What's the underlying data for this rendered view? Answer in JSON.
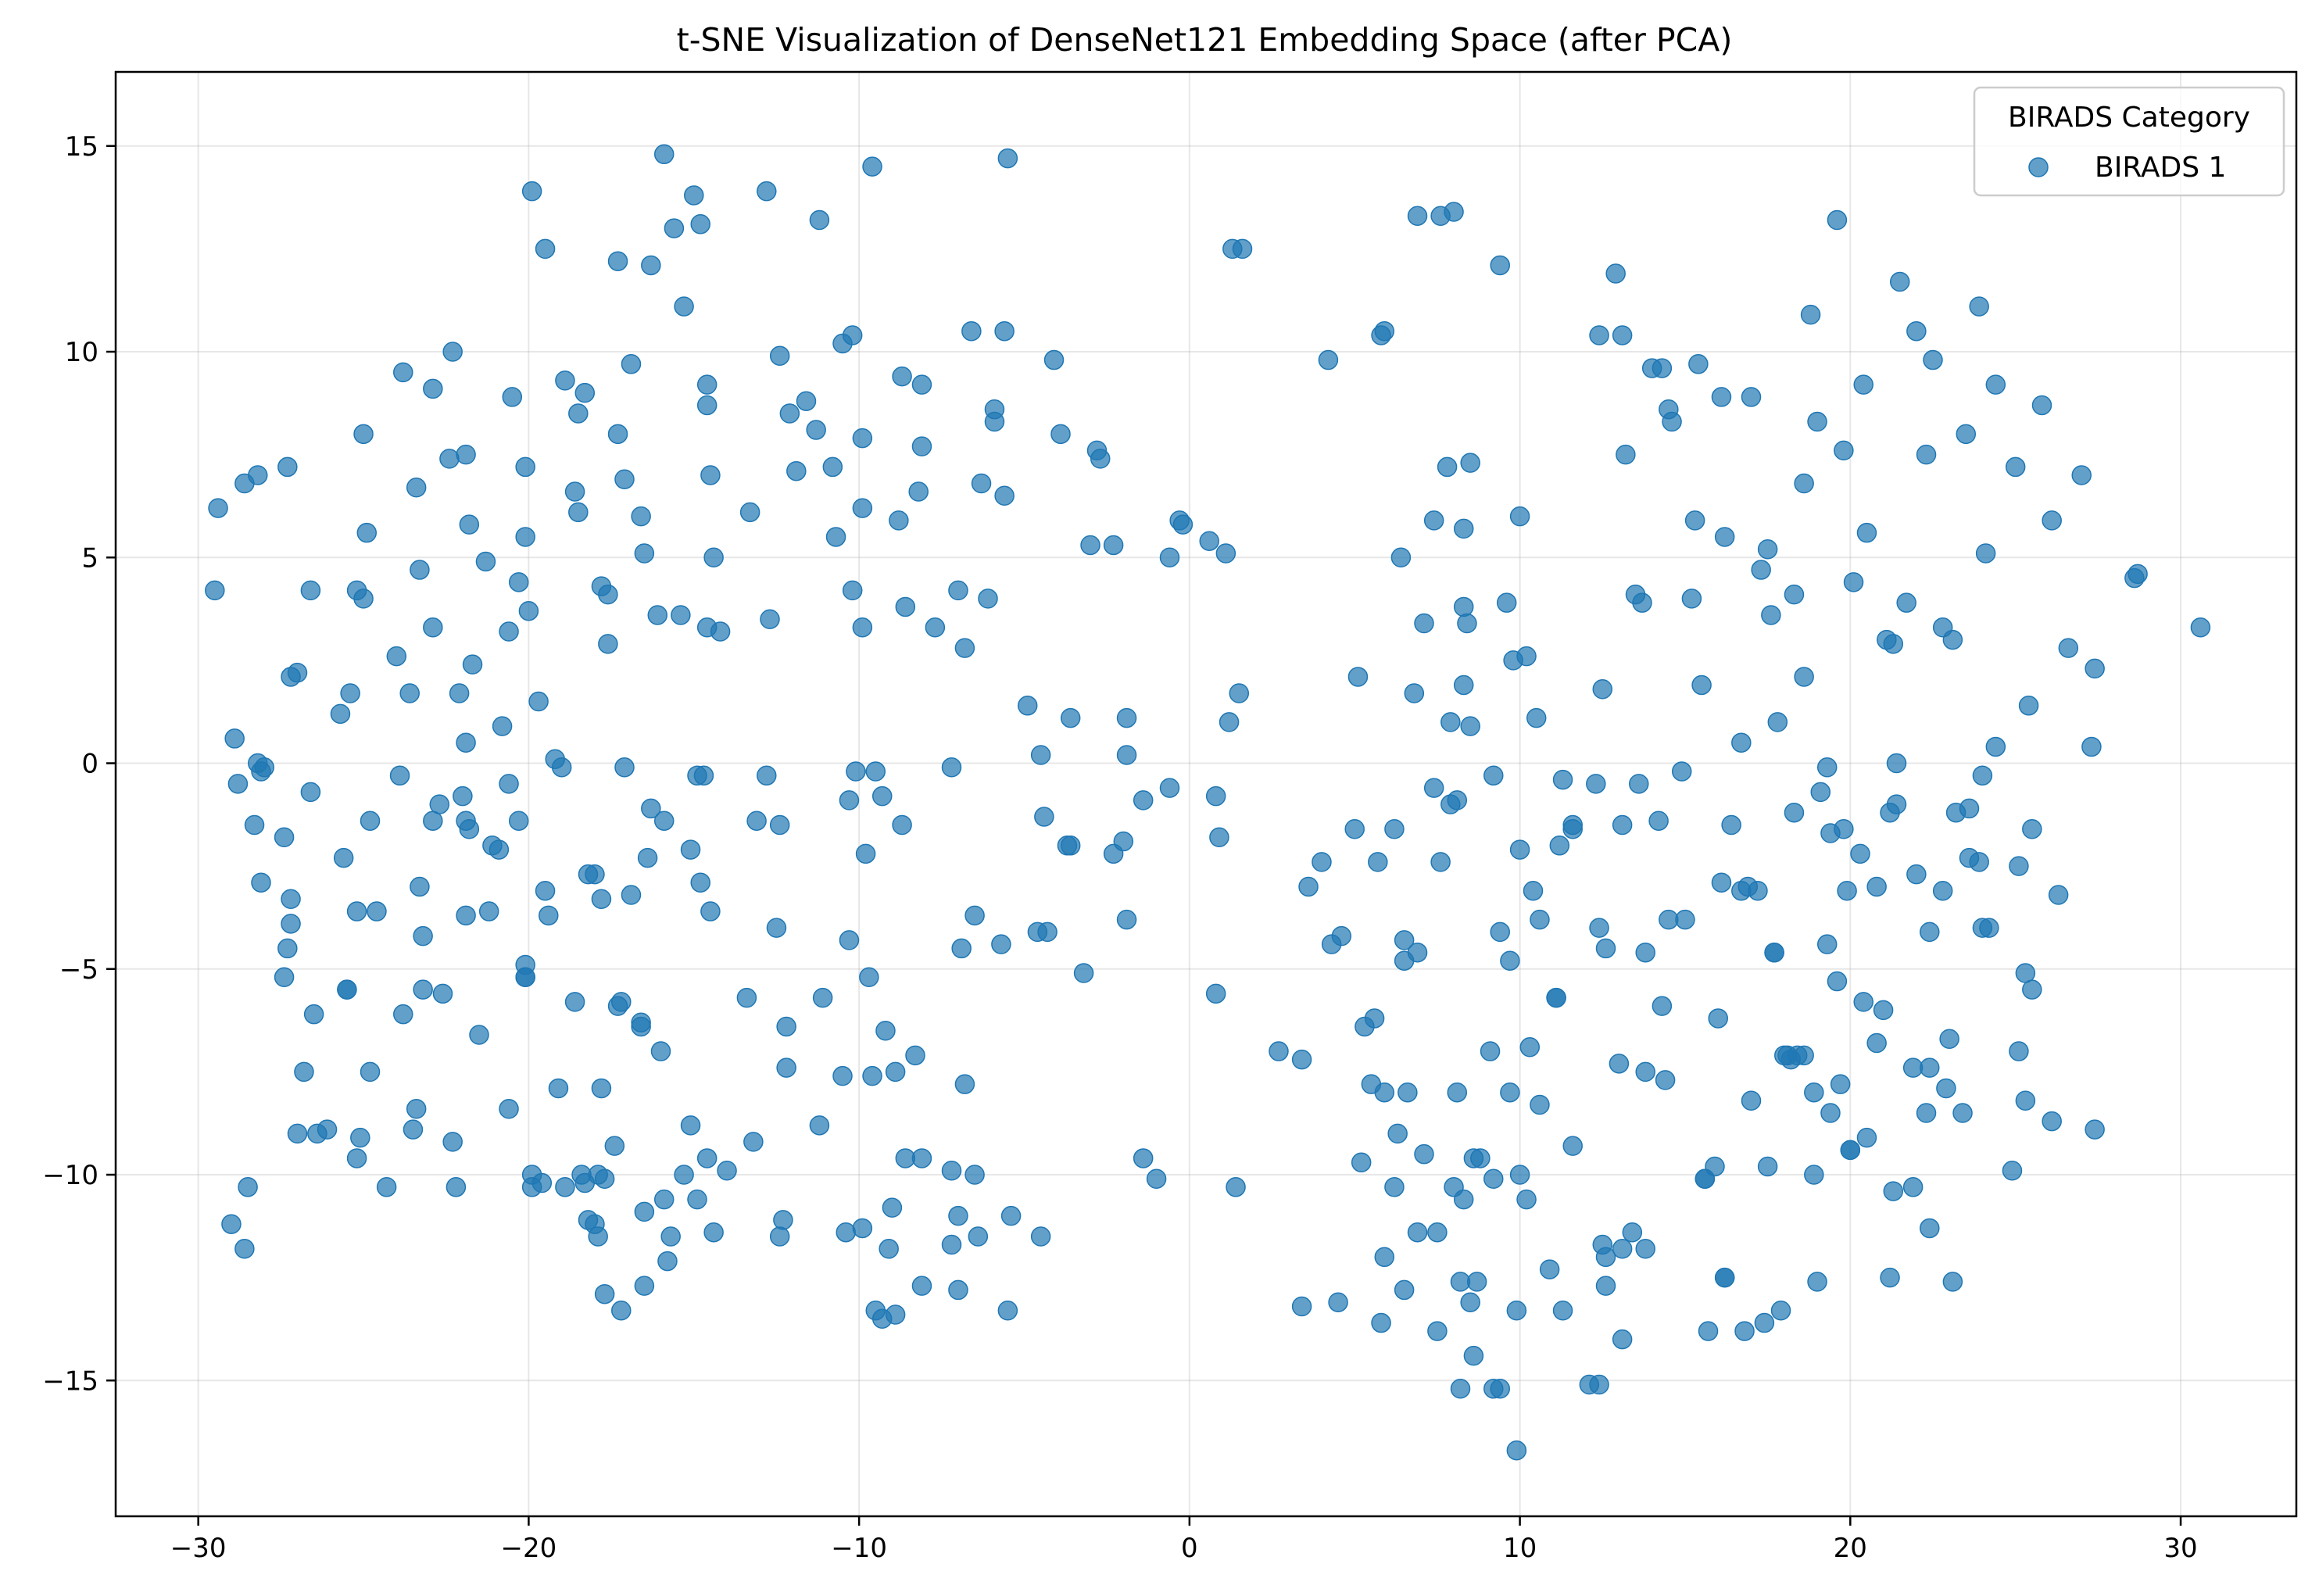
{
  "chart_data": {
    "type": "scatter",
    "title": "t-SNE Visualization of DenseNet121 Embedding Space (after PCA)",
    "xlabel": "",
    "ylabel": "",
    "xlim": [
      -32.5,
      33.5
    ],
    "ylim": [
      -18.3,
      16.8
    ],
    "xticks": [
      -30,
      -20,
      -10,
      0,
      10,
      20,
      30
    ],
    "yticks": [
      -15,
      -10,
      -5,
      0,
      5,
      10,
      15
    ],
    "xtick_labels": [
      "−30",
      "−20",
      "−10",
      "0",
      "10",
      "20",
      "30"
    ],
    "ytick_labels": [
      "−15",
      "−10",
      "−5",
      "0",
      "5",
      "10",
      "15"
    ],
    "grid": true,
    "legend": {
      "title": "BIRADS Category",
      "placement": "top-right"
    },
    "color": "#1f77b4",
    "series": [
      {
        "name": "BIRADS 1",
        "x": [
          -29.5,
          -29.4,
          -28.6,
          -28.2,
          -27.3,
          -28.2,
          -28.0,
          -27.2,
          -27.0,
          -26.6,
          -26.6,
          -25.0,
          -24.9,
          -25.2,
          -25.0,
          -25.7,
          -25.4,
          -23.8,
          -24.0,
          -23.4,
          -23.3,
          -22.9,
          -22.9,
          -22.4,
          -22.3,
          -21.9,
          -21.8,
          -21.7,
          -21.9,
          -22.1,
          -20.5,
          -20.6,
          -20.3,
          -20.1,
          -20.1,
          -20.0,
          -19.9,
          -19.5,
          -19.7,
          -19.2,
          -18.9,
          -18.5,
          -18.3,
          -18.5,
          -18.6,
          -17.8,
          -17.3,
          -17.6,
          -17.6,
          -17.3,
          -17.1,
          -17.1,
          -16.9,
          -16.6,
          -16.5,
          -16.3,
          -16.1,
          -15.9,
          -15.6,
          -15.4,
          -15.3,
          -15.0,
          -14.9,
          -14.8,
          -14.6,
          -14.6,
          -14.5,
          -14.4,
          -14.2,
          -14.7,
          -14.6,
          -13.3,
          -12.8,
          -12.7,
          -12.4,
          -12.1,
          -11.6,
          -11.9,
          -11.3,
          -11.2,
          -10.8,
          -10.7,
          -10.5,
          -10.2,
          -10.2,
          -9.9,
          -9.9,
          -9.9,
          -9.6,
          -9.5,
          -8.8,
          -8.7,
          -8.6,
          -8.1,
          -8.1,
          -8.2,
          -7.7,
          -7.2,
          -7.0,
          -6.8,
          -6.6,
          -6.3,
          -6.1,
          -5.9,
          -5.9,
          -5.6,
          -5.6,
          -5.5,
          -4.9,
          -4.5,
          -4.1,
          -3.9,
          -3.6,
          -3.0,
          -2.8,
          -2.7,
          -2.3,
          -1.9,
          -0.6,
          -0.3,
          0.6,
          1.1,
          1.3,
          1.6,
          1.2,
          -27.2,
          -27.0,
          -25.1,
          -24.3,
          -23.3,
          -23.2,
          -22.9,
          -22.0,
          -21.8,
          -21.3,
          -20.6,
          -20.1,
          -20.3,
          -19.9,
          -19.5,
          -18.6,
          -18.0,
          -17.8,
          -17.3,
          -16.9,
          -16.6,
          -15.9,
          -15.1,
          -14.5,
          -12.8,
          -12.2,
          -10.3,
          -10.1,
          -9.8,
          -8.9,
          -8.7,
          -7.2,
          -6.8,
          -4.4,
          -3.7,
          -2.3,
          -1.9,
          -1.0,
          -0.6,
          0.8,
          1.5,
          -28.3,
          -28.1,
          -27.3,
          -26.4,
          -25.5,
          -24.6,
          -23.6,
          -22.7,
          -21.5,
          -20.8,
          -20.1,
          -19.1,
          -18.3,
          -17.4,
          -16.5,
          -15.7,
          -14.8,
          -13.4,
          -12.5,
          -11.2,
          -10.5,
          -9.7,
          -8.1,
          -6.9,
          -6.5,
          -5.4,
          -4.6,
          -2.0,
          -1.4,
          0.9,
          1.4,
          -29.0,
          -28.9,
          -27.2,
          -27.4,
          -26.8,
          -26.1,
          -25.5,
          -25.2,
          -23.8,
          -23.4,
          -23.2,
          -22.6,
          -21.9,
          -21.9,
          -21.2,
          -20.1,
          -19.4,
          -18.4,
          -17.8,
          -17.2,
          -16.6,
          -16.0,
          -15.3,
          -14.9,
          -14.4,
          -13.2,
          -12.4,
          -12.2,
          -11.1,
          -9.6,
          -9.2,
          -8.6,
          -8.3,
          -7.2,
          -7.0,
          -6.4,
          -5.5,
          -4.5,
          -4.3,
          -28.6,
          -28.1,
          -27.4,
          -25.2,
          -24.8,
          -23.5,
          -22.3,
          -22.2,
          -20.6,
          -19.9,
          -19.6,
          -18.9,
          -18.2,
          -17.9,
          -17.7,
          -17.2,
          -16.5,
          -15.9,
          -15.8,
          -15.1,
          -14.6,
          -14.0,
          -12.3,
          -10.4,
          -9.9,
          -9.5,
          -9.3,
          -9.0,
          -9.1,
          -8.9,
          -8.1,
          -7.0,
          -18.2,
          -17.9,
          -18.0,
          -17.7,
          -28.5,
          0.8,
          -1.9,
          -1.4,
          -25.6,
          -28.8,
          -23.9,
          -19.0,
          -16.3,
          -12.4,
          -24.8,
          -26.5,
          -20.9,
          -21.1,
          -16.4,
          -13.1,
          -10.3,
          -9.3,
          -6.5,
          -5.7,
          -3.2,
          -3.6,
          -0.2,
          4.2,
          5.1,
          5.8,
          5.9,
          6.4,
          6.9,
          6.8,
          7.1,
          7.4,
          7.6,
          7.8,
          7.9,
          8.0,
          8.1,
          8.3,
          8.3,
          8.4,
          8.5,
          9.4,
          9.6,
          9.8,
          10.0,
          10.2,
          10.5,
          11.3,
          11.6,
          12.4,
          12.5,
          12.9,
          13.1,
          13.2,
          13.5,
          13.7,
          14.0,
          14.3,
          14.5,
          14.6,
          15.2,
          15.3,
          15.4,
          16.1,
          16.2,
          16.7,
          17.0,
          17.3,
          17.5,
          17.6,
          17.8,
          18.3,
          18.6,
          18.8,
          19.0,
          19.3,
          19.6,
          19.8,
          20.1,
          20.4,
          20.5,
          21.1,
          21.3,
          21.5,
          21.7,
          22.0,
          22.3,
          22.5,
          22.8,
          23.1,
          23.5,
          23.9,
          24.1,
          24.4,
          25.0,
          25.4,
          25.8,
          26.1,
          26.6,
          27.0,
          27.4,
          28.6,
          28.7,
          30.6,
          5.0,
          5.7,
          6.5,
          6.9,
          7.6,
          7.9,
          8.3,
          8.5,
          9.2,
          9.4,
          10.0,
          10.4,
          10.6,
          11.2,
          11.6,
          12.3,
          12.6,
          13.1,
          13.6,
          14.2,
          14.5,
          15.0,
          15.5,
          16.1,
          16.7,
          17.2,
          17.7,
          18.3,
          18.6,
          19.1,
          19.4,
          19.9,
          20.3,
          20.8,
          21.2,
          21.4,
          22.0,
          22.4,
          22.8,
          23.2,
          23.6,
          24.0,
          24.4,
          25.1,
          25.5,
          26.3,
          27.3,
          4.3,
          5.5,
          6.2,
          6.5,
          7.4,
          8.1,
          8.8,
          9.1,
          9.7,
          10.3,
          10.6,
          11.1,
          11.6,
          12.4,
          12.5,
          13.0,
          13.4,
          13.8,
          14.3,
          14.9,
          15.6,
          16.0,
          16.4,
          16.9,
          17.7,
          18.2,
          18.6,
          19.3,
          19.7,
          20.4,
          20.8,
          21.4,
          21.9,
          22.4,
          23.0,
          23.4,
          23.9,
          24.2,
          25.1,
          25.3,
          25.5,
          2.7,
          3.4,
          5.2,
          5.9,
          6.3,
          6.6,
          7.1,
          7.5,
          8.0,
          8.3,
          8.6,
          9.2,
          9.7,
          10.0,
          10.2,
          11.1,
          12.6,
          13.1,
          13.8,
          14.4,
          15.6,
          16.2,
          17.0,
          17.5,
          18.1,
          18.4,
          18.9,
          19.4,
          20.0,
          20.5,
          21.3,
          21.9,
          22.3,
          22.9,
          23.6,
          24.0,
          3.4,
          4.5,
          5.8,
          6.5,
          7.5,
          8.2,
          8.5,
          9.2,
          9.9,
          10.9,
          11.3,
          12.4,
          13.1,
          16.2,
          16.8,
          17.4,
          17.9,
          19.0,
          8.6,
          8.2,
          9.4,
          12.1,
          9.9,
          4.6,
          5.6,
          6.2,
          5.9,
          4.0,
          3.6,
          5.3,
          6.9,
          8.7,
          12.6,
          13.8,
          15.7,
          15.9,
          20.0,
          21.2,
          22.4,
          23.1,
          24.9,
          25.3,
          26.1,
          27.4,
          19.8,
          18.0,
          19.6,
          21.0,
          18.9
        ],
        "y": [
          4.2,
          6.2,
          6.8,
          7.0,
          7.2,
          0.0,
          -0.1,
          2.1,
          2.2,
          4.2,
          -0.7,
          8.0,
          5.6,
          4.2,
          4.0,
          1.2,
          1.7,
          9.5,
          2.6,
          6.7,
          4.7,
          9.1,
          3.3,
          7.4,
          10.0,
          7.5,
          5.8,
          2.4,
          0.5,
          1.7,
          8.9,
          3.2,
          4.4,
          7.2,
          5.5,
          3.7,
          13.9,
          12.5,
          1.5,
          0.1,
          9.3,
          8.5,
          9.0,
          6.1,
          6.6,
          4.3,
          8.0,
          2.9,
          4.1,
          12.2,
          6.9,
          -0.1,
          9.7,
          6.0,
          5.1,
          12.1,
          3.6,
          14.8,
          13.0,
          3.6,
          11.1,
          13.8,
          -0.3,
          13.1,
          8.7,
          9.2,
          7.0,
          5.0,
          3.2,
          -0.3,
          3.3,
          6.1,
          13.9,
          3.5,
          9.9,
          8.5,
          8.8,
          7.1,
          8.1,
          13.2,
          7.2,
          5.5,
          10.2,
          10.4,
          4.2,
          7.9,
          6.2,
          3.3,
          14.5,
          -0.2,
          5.9,
          9.4,
          3.8,
          9.2,
          7.7,
          6.6,
          3.3,
          -0.1,
          4.2,
          2.8,
          10.5,
          6.8,
          4.0,
          8.6,
          8.3,
          6.5,
          10.5,
          14.7,
          1.4,
          0.2,
          9.8,
          8.0,
          1.1,
          5.3,
          7.6,
          7.4,
          5.3,
          0.2,
          5.0,
          5.9,
          5.4,
          5.1,
          12.5,
          12.5,
          1.0,
          -3.3,
          -9.0,
          -9.1,
          -10.3,
          -3.0,
          -5.5,
          -1.4,
          -0.8,
          -1.6,
          4.9,
          -0.5,
          -4.9,
          -1.4,
          -10.3,
          -3.1,
          -5.8,
          -2.7,
          -3.3,
          -5.9,
          -3.2,
          -6.4,
          -1.4,
          -2.1,
          -3.6,
          -0.3,
          -7.4,
          -0.9,
          -0.2,
          -2.2,
          -7.5,
          -1.5,
          -11.7,
          -7.8,
          -1.3,
          -2.0,
          -2.2,
          1.1,
          -10.1,
          -0.6,
          -0.8,
          1.7,
          -1.5,
          -0.2,
          -4.5,
          -9.0,
          -5.5,
          -3.6,
          1.7,
          -1.0,
          -6.6,
          0.9,
          -5.2,
          -7.9,
          -10.2,
          -9.3,
          -10.9,
          -11.5,
          -2.9,
          -5.7,
          -4.0,
          -8.8,
          -7.6,
          -5.2,
          -9.6,
          -4.5,
          -10.0,
          -11.0,
          -4.1,
          -1.9,
          -9.6,
          -1.8,
          -10.3,
          -11.2,
          0.6,
          -3.9,
          -5.2,
          -7.5,
          -8.9,
          -5.5,
          -3.6,
          -6.1,
          -8.4,
          -4.2,
          -5.6,
          -3.7,
          -1.4,
          -3.6,
          -5.2,
          -3.7,
          -10.0,
          -7.9,
          -5.8,
          -6.3,
          -7.0,
          -10.0,
          -10.6,
          -11.4,
          -9.2,
          -11.5,
          -6.4,
          -5.7,
          -7.6,
          -6.5,
          -9.6,
          -7.1,
          -9.9,
          -11.0,
          -11.5,
          -13.3,
          -11.5,
          -4.1,
          -11.8,
          -2.9,
          -1.8,
          -9.6,
          -7.5,
          -8.9,
          -9.2,
          -10.3,
          -8.4,
          -10.0,
          -10.2,
          -10.3,
          -11.1,
          -11.5,
          -12.9,
          -13.3,
          -12.7,
          -10.6,
          -12.1,
          -8.8,
          -9.6,
          -9.9,
          -11.1,
          -11.4,
          -11.3,
          -13.3,
          -13.5,
          -10.8,
          -11.8,
          -13.4,
          -12.7,
          -12.8,
          -2.7,
          -10.0,
          -11.2,
          -10.1,
          -10.3,
          -5.6,
          -3.8,
          -0.9,
          -2.3,
          -0.5,
          -0.3,
          -0.1,
          -1.1,
          -1.5,
          -1.4,
          -6.1,
          -2.1,
          -2.0,
          -2.3,
          -1.4,
          -4.3,
          -0.8,
          -3.7,
          -4.4,
          -5.1,
          -2.0,
          5.8,
          9.8,
          2.1,
          10.4,
          10.5,
          5.0,
          13.3,
          1.7,
          3.4,
          5.9,
          13.3,
          7.2,
          1.0,
          13.4,
          -0.9,
          5.7,
          3.8,
          3.4,
          7.3,
          12.1,
          3.9,
          2.5,
          6.0,
          2.6,
          1.1,
          -0.4,
          -1.6,
          10.4,
          1.8,
          11.9,
          10.4,
          7.5,
          4.1,
          3.9,
          9.6,
          9.6,
          8.6,
          8.3,
          4.0,
          5.9,
          9.7,
          8.9,
          5.5,
          0.5,
          8.9,
          4.7,
          5.2,
          3.6,
          1.0,
          4.1,
          6.8,
          10.9,
          8.3,
          -0.1,
          13.2,
          7.6,
          4.4,
          9.2,
          5.6,
          3.0,
          2.9,
          11.7,
          3.9,
          10.5,
          7.5,
          9.8,
          3.3,
          3.0,
          8.0,
          11.1,
          5.1,
          9.2,
          7.2,
          1.4,
          8.7,
          5.9,
          2.8,
          7.0,
          2.3,
          4.5,
          4.6,
          3.3,
          -1.6,
          -2.4,
          -4.3,
          -4.6,
          -2.4,
          -1.0,
          1.9,
          0.9,
          -0.3,
          -4.1,
          -2.1,
          -3.1,
          -3.8,
          -2.0,
          -1.5,
          -0.5,
          -4.5,
          -1.5,
          -0.5,
          -1.4,
          -3.8,
          -3.8,
          1.9,
          -2.9,
          -3.1,
          -3.1,
          -4.6,
          -1.2,
          2.1,
          -0.7,
          -1.7,
          -3.1,
          -2.2,
          -3.0,
          -1.2,
          0.0,
          -2.7,
          -4.1,
          -3.1,
          -1.2,
          -2.3,
          -0.3,
          0.4,
          -2.5,
          -1.6,
          -3.2,
          0.4,
          -4.4,
          -7.8,
          -1.6,
          -4.8,
          -0.6,
          -8.0,
          -9.6,
          -7.0,
          -4.8,
          -6.9,
          -8.3,
          -5.7,
          -9.3,
          -4.0,
          -11.7,
          -7.3,
          -11.4,
          -4.6,
          -5.9,
          -0.2,
          -10.1,
          -6.2,
          -1.5,
          -3.0,
          -4.6,
          -7.2,
          -7.1,
          -4.4,
          -7.8,
          -5.8,
          -6.8,
          -1.0,
          -10.3,
          -7.4,
          -6.7,
          -8.5,
          -2.4,
          -4.0,
          -7.0,
          -5.1,
          -5.5,
          -7.0,
          -7.2,
          -9.7,
          -12.0,
          -9.0,
          -8.0,
          -9.5,
          -11.4,
          -10.3,
          -10.6,
          -9.6,
          -10.1,
          -8.0,
          -10.0,
          -10.6,
          -5.7,
          -12.7,
          -11.8,
          -7.5,
          -7.7,
          -10.1,
          -12.5,
          -8.2,
          -9.8,
          -7.1,
          -7.1,
          -10.0,
          -8.5,
          -9.4,
          -9.1,
          -10.4,
          -7.4,
          -8.5,
          -7.9,
          -1.1,
          -4.0,
          -13.2,
          -13.1,
          -13.6,
          -12.8,
          -13.8,
          -12.6,
          -13.1,
          -15.2,
          -13.3,
          -12.3,
          -13.3,
          -15.1,
          -14.0,
          -12.5,
          -13.8,
          -13.6,
          -13.3,
          -12.6,
          -14.4,
          -15.2,
          -15.2,
          -15.1,
          -16.7,
          -4.2,
          -6.2,
          -10.3,
          -8.0,
          -2.4,
          -3.0,
          -6.4,
          -11.4,
          -12.6,
          -12.0,
          -11.8,
          -13.8,
          -9.8,
          -9.4,
          -12.5,
          -11.3,
          -12.6,
          -9.9,
          -8.2,
          -8.7,
          -8.9,
          -1.6,
          -7.1,
          -5.3,
          -6.0,
          -8.0
        ]
      }
    ]
  }
}
